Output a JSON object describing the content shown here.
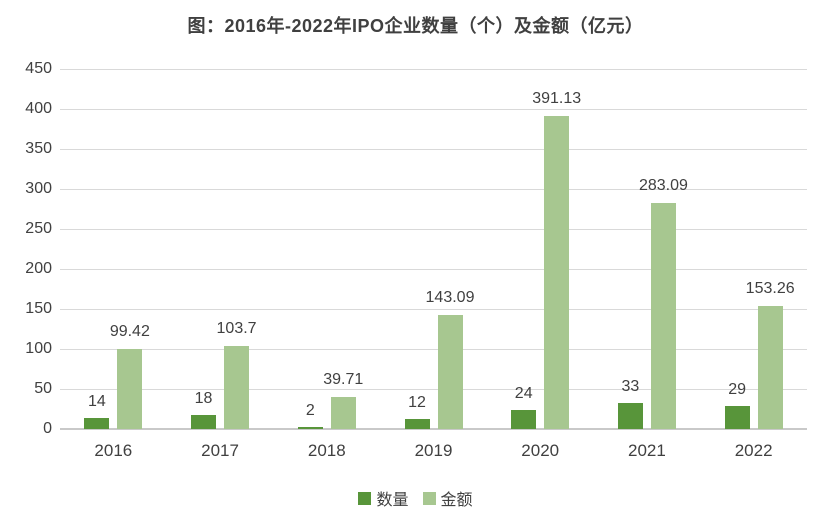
{
  "title": "图：2016年-2022年IPO企业数量（个）及金额（亿元）",
  "colors": {
    "quantity_bar": "#58953a",
    "amount_bar": "#a7c790",
    "gridline": "#d9d9d9",
    "axis_line": "#c9c9c9",
    "text": "#404040"
  },
  "legend": {
    "items": [
      {
        "label": "数量",
        "color": "#58953a"
      },
      {
        "label": "金额",
        "color": "#a7c790"
      }
    ]
  },
  "chart_data": {
    "type": "bar",
    "title": "图：2016年-2022年IPO企业数量（个）及金额（亿元）",
    "categories": [
      "2016",
      "2017",
      "2018",
      "2019",
      "2020",
      "2021",
      "2022"
    ],
    "series": [
      {
        "name": "数量",
        "color": "#58953a",
        "values": [
          14,
          18,
          2,
          12,
          24,
          33,
          29
        ],
        "labels": [
          "14",
          "18",
          "2",
          "12",
          "24",
          "33",
          "29"
        ]
      },
      {
        "name": "金额",
        "color": "#a7c790",
        "values": [
          99.42,
          103.7,
          39.71,
          143.09,
          391.13,
          283.09,
          153.26
        ],
        "labels": [
          "99.42",
          "103.7",
          "39.71",
          "143.09",
          "391.13",
          "283.09",
          "153.26"
        ]
      }
    ],
    "xlabel": "",
    "ylabel": "",
    "ylim": [
      0,
      450
    ],
    "ytick_step": 50,
    "grid": true,
    "legend_position": "bottom"
  }
}
